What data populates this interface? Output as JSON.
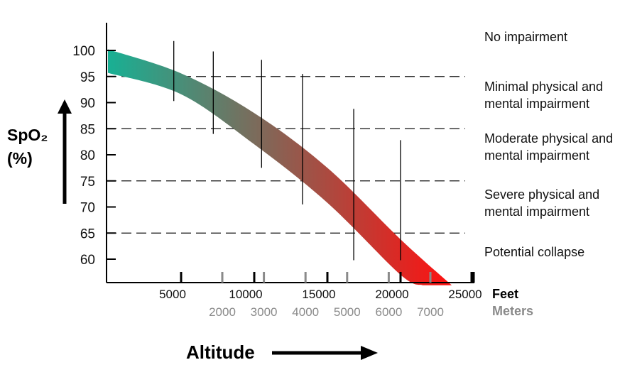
{
  "chart_data": {
    "type": "area",
    "title": "",
    "ylabel_line1": "SpO₂",
    "ylabel_line2": "(%)",
    "xlabel": "Altitude",
    "y_ticks": [
      100,
      95,
      90,
      85,
      80,
      75,
      70,
      65,
      60
    ],
    "ylim": [
      55,
      105
    ],
    "x_axes": [
      {
        "name": "Feet",
        "unit": "ft",
        "ticks": [
          5000,
          10000,
          15000,
          20000,
          25000
        ],
        "color": "#000000"
      },
      {
        "name": "Meters",
        "unit": "m",
        "ticks": [
          2000,
          3000,
          4000,
          5000,
          6000,
          7000
        ],
        "color": "#8a8a8a"
      }
    ],
    "thresholds": [
      95,
      85,
      75,
      65
    ],
    "zones": [
      {
        "label": "No impairment",
        "from": 95,
        "to": 100
      },
      {
        "label": "Minimal physical and mental impairment",
        "from": 85,
        "to": 95
      },
      {
        "label": "Moderate physical and mental impairment",
        "from": 75,
        "to": 85
      },
      {
        "label": "Severe physical and mental impairment",
        "from": 65,
        "to": 75
      },
      {
        "label": "Potential collapse",
        "from": 55,
        "to": 65
      }
    ],
    "band": {
      "upper": [
        [
          0,
          100.2
        ],
        [
          5000,
          95.6
        ],
        [
          10000,
          88
        ],
        [
          15000,
          77.5
        ],
        [
          20000,
          63.8
        ],
        [
          23500,
          55
        ]
      ],
      "lower": [
        [
          0,
          95.7
        ],
        [
          5000,
          91.6
        ],
        [
          10000,
          82
        ],
        [
          15000,
          70.8
        ],
        [
          20000,
          57
        ],
        [
          21500,
          55
        ]
      ],
      "color_start": "#18b094",
      "color_end": "#ff1010"
    },
    "error_bars": [
      {
        "x": 4500,
        "low": 90.3,
        "high": 101.8
      },
      {
        "x": 7200,
        "low": 84,
        "high": 99.8
      },
      {
        "x": 10500,
        "low": 77.5,
        "high": 98.2
      },
      {
        "x": 13300,
        "low": 70.5,
        "high": 95.5
      },
      {
        "x": 16800,
        "low": 59.8,
        "high": 88.8
      },
      {
        "x": 20000,
        "low": 59.8,
        "high": 82.8
      }
    ]
  }
}
